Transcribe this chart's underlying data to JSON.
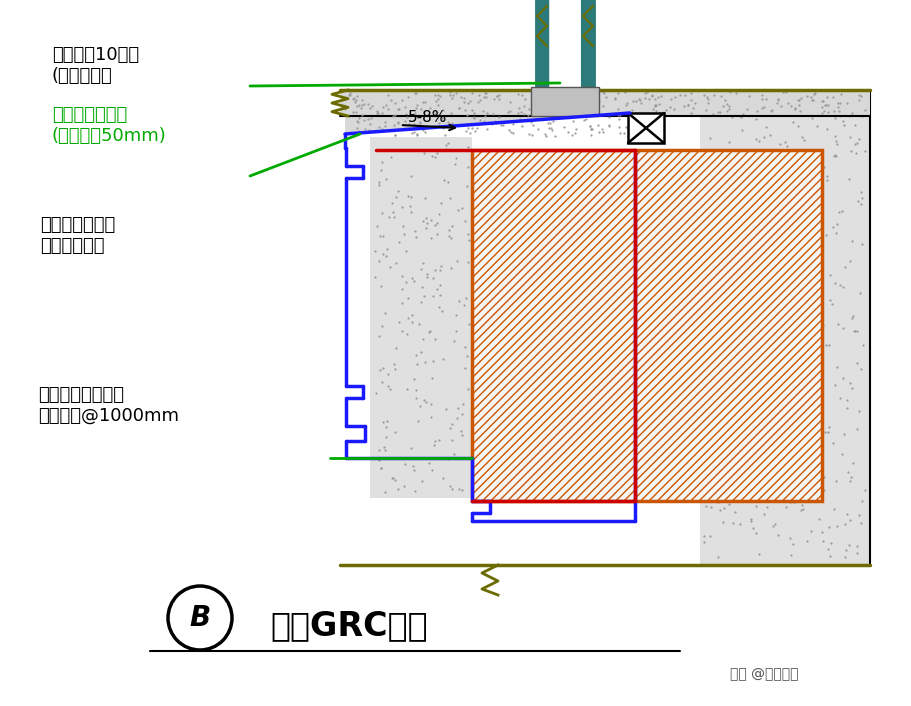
{
  "bg_color": "#ffffff",
  "title": "窗台GRC窗套",
  "label_B": "B",
  "watermark": "头条 @工程萌主",
  "blue_line_color": "#1a1aff",
  "red_line_color": "#cc0000",
  "orange_line_color": "#cc5500",
  "dark_olive": "#6b6b00",
  "teal_color": "#2d7a7a",
  "gray_color": "#888888",
  "green_color": "#00aa00",
  "black": "#000000",
  "stipple_color": "#999999",
  "wall_fill": "#e0e0e0",
  "hatch_fill": "#f5f5f5",
  "frame_fill": "#c0c0c0",
  "slab_fill": "#d8d8d8"
}
